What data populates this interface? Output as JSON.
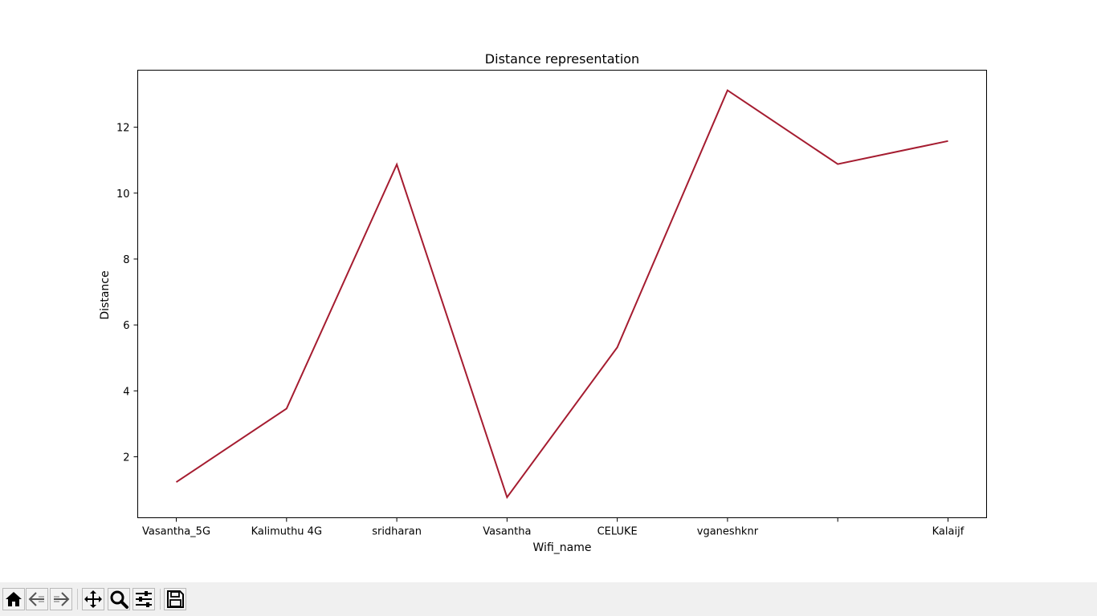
{
  "chart_data": {
    "type": "line",
    "title": "Distance representation",
    "xlabel": "Wifi_name",
    "ylabel": "Distance",
    "categories": [
      "Vasantha_5G",
      "Kalimuthu 4G",
      "sridharan",
      "Vasantha",
      "CELUKE",
      "vganeshknr",
      "",
      "Kalaijf"
    ],
    "values": [
      1.23,
      3.46,
      10.87,
      0.77,
      5.32,
      13.12,
      10.88,
      11.58
    ],
    "yticks": [
      2,
      4,
      6,
      8,
      10,
      12
    ],
    "ylim": [
      0.15,
      13.73
    ],
    "grid": false,
    "line_color": "#a51c30"
  },
  "toolbar": {
    "icons": [
      "home-icon",
      "back-arrow-icon",
      "forward-arrow-icon",
      "pan-icon",
      "zoom-icon",
      "configure-subplots-icon",
      "save-icon"
    ]
  }
}
